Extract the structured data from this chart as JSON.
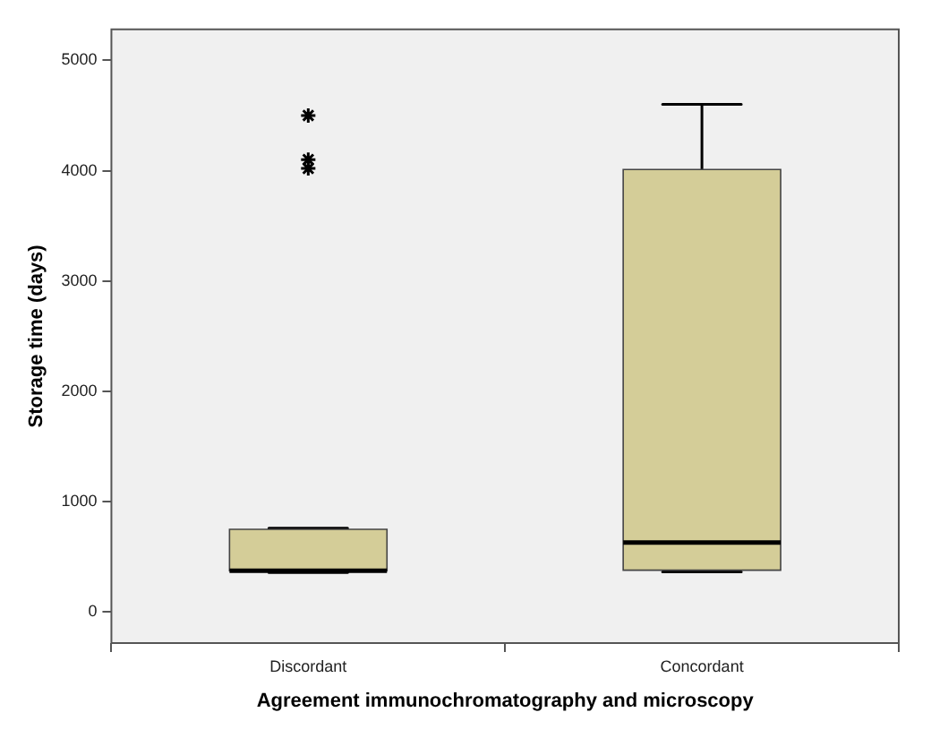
{
  "chart_data": {
    "type": "box",
    "xlabel": "Agreement immunochromatography and microscopy",
    "ylabel": "Storage time (days)",
    "categories": [
      "Discordant",
      "Concordant"
    ],
    "series": [
      {
        "color": "#d4cd98",
        "boxes": [
          {
            "low": 360,
            "q1": 375,
            "median": 375,
            "q3": 750,
            "high": 760,
            "outliers": [
              4500,
              4100,
              4020
            ]
          },
          {
            "low": 365,
            "q1": 380,
            "median": 630,
            "q3": 4010,
            "high": 4600
          }
        ]
      }
    ],
    "ylim": [
      -280,
      5280
    ],
    "yticks": [
      0,
      1000,
      2000,
      3000,
      4000,
      5000
    ],
    "marker": "star",
    "legend": false
  }
}
